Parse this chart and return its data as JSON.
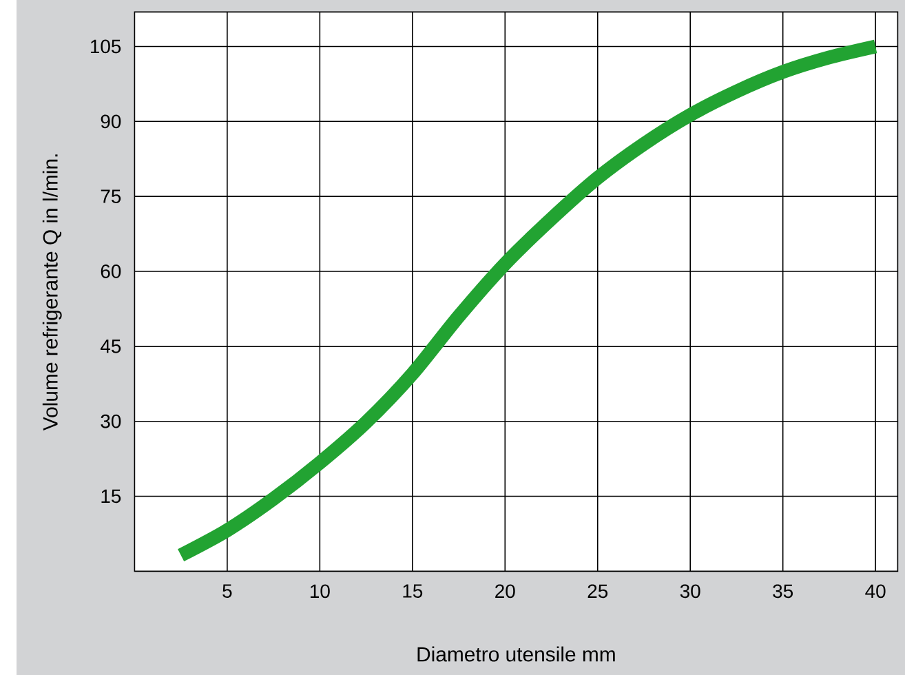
{
  "chart_data": {
    "type": "line",
    "xlabel": "Diametro utensile mm",
    "ylabel": "Volume refrigerante Q in l/min.",
    "x": [
      2.5,
      5,
      7.5,
      10,
      12.5,
      15,
      17.5,
      20,
      22.5,
      25,
      27.5,
      30,
      32.5,
      35,
      37.5,
      40
    ],
    "series": [
      {
        "color": "#22a332",
        "values": [
          3.2,
          8.2,
          14.5,
          21.7,
          29.8,
          39.5,
          51,
          61.5,
          70.5,
          78.7,
          85.5,
          91.3,
          96,
          99.9,
          102.8,
          105
        ]
      }
    ],
    "xlim": [
      0,
      41.2
    ],
    "ylim": [
      0,
      111.9
    ],
    "xticks": [
      5,
      10,
      15,
      20,
      25,
      30,
      35,
      40
    ],
    "yticks": [
      15,
      30,
      45,
      60,
      75,
      90,
      105
    ],
    "grid": true,
    "marker": "none",
    "line_style": "solid"
  }
}
